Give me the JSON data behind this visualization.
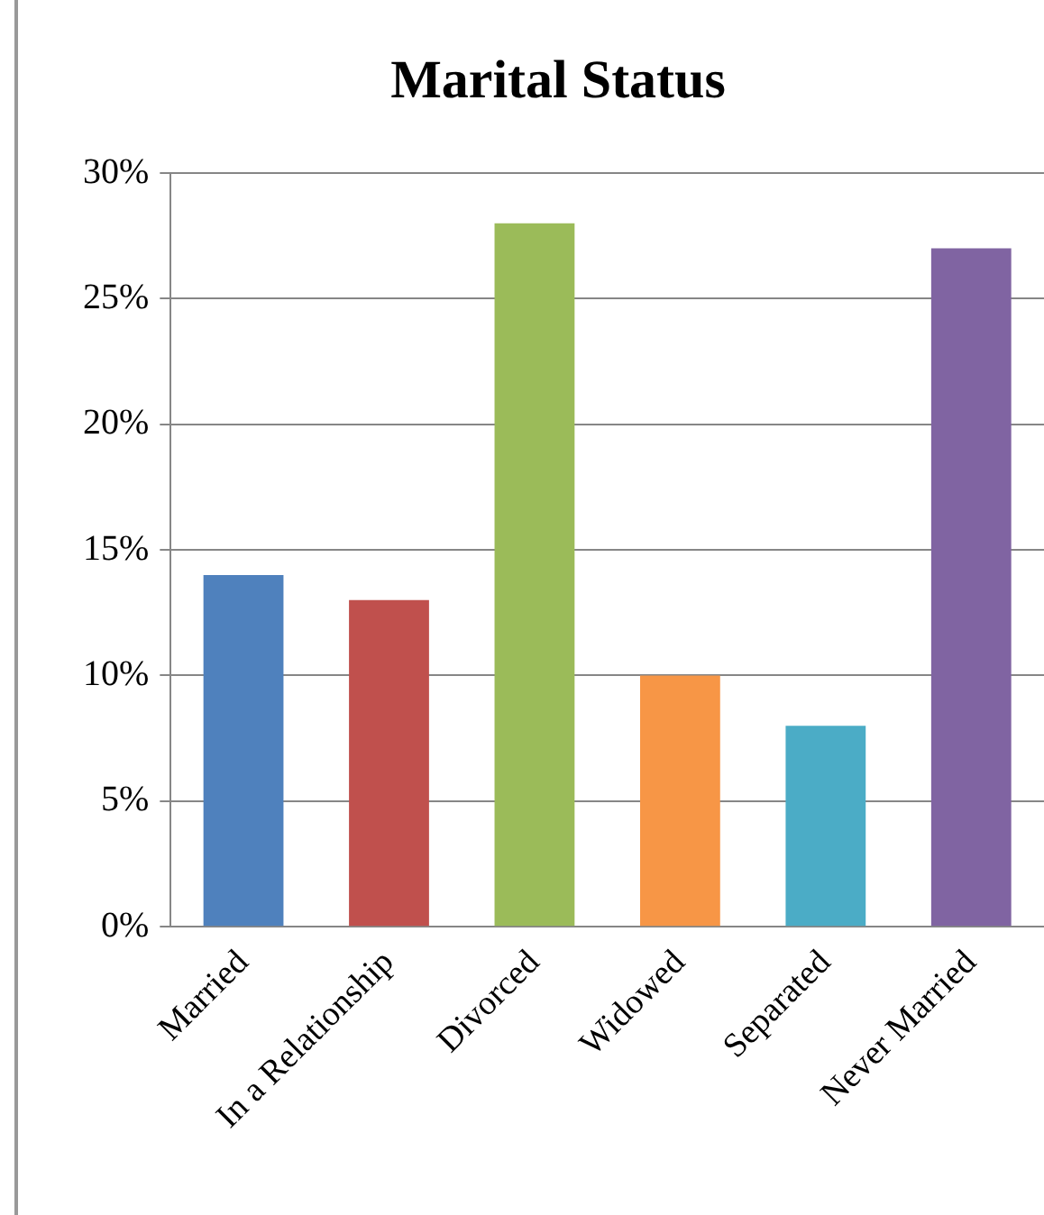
{
  "chart_data": {
    "type": "bar",
    "title": "Marital Status",
    "categories": [
      "Married",
      "In a Relationship",
      "Divorced",
      "Widowed",
      "Separated",
      "Never Married"
    ],
    "values": [
      14,
      13,
      28,
      10,
      8,
      27
    ],
    "colors": [
      "#4f81bd",
      "#c0504d",
      "#9bbb59",
      "#f79646",
      "#4bacc6",
      "#8064a2"
    ],
    "ylim": [
      0,
      30
    ],
    "yticks": [
      {
        "value": 0,
        "label": "0%"
      },
      {
        "value": 5,
        "label": "5%"
      },
      {
        "value": 10,
        "label": "10%"
      },
      {
        "value": 15,
        "label": "15%"
      },
      {
        "value": 20,
        "label": "20%"
      },
      {
        "value": 25,
        "label": "25%"
      },
      {
        "value": 30,
        "label": "30%"
      }
    ],
    "grid": "y",
    "legend": false
  }
}
